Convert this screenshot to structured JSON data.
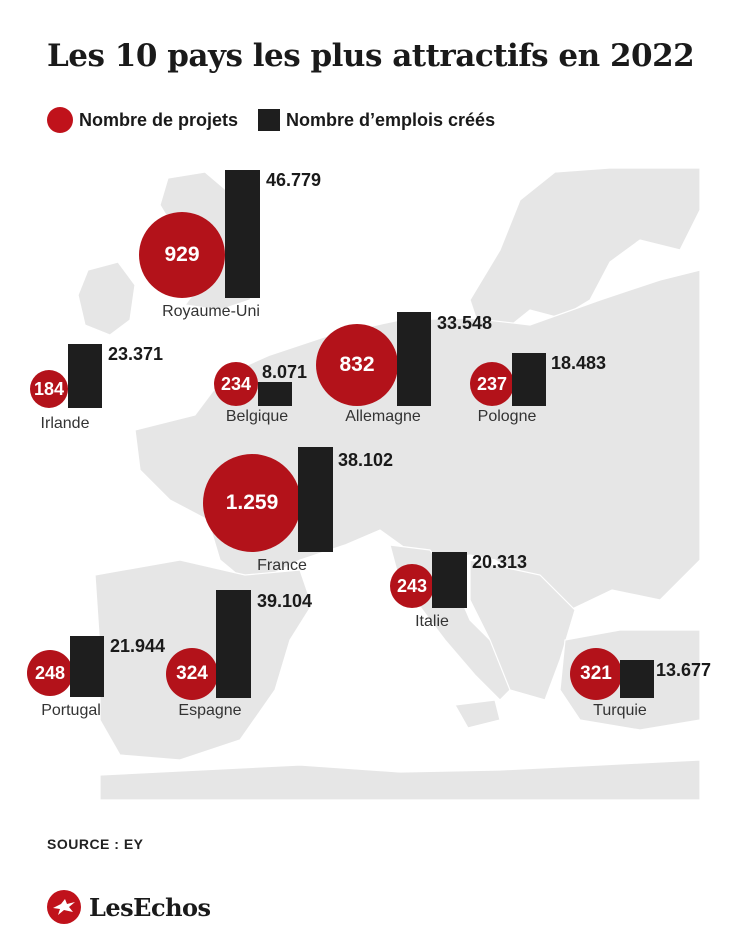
{
  "title": "Les 10 pays les plus attractifs en 2022",
  "legend": {
    "projects_label": "Nombre de projets",
    "jobs_label": "Nombre d’emplois créés",
    "projects_color": "#b3121a",
    "jobs_color": "#1e1e1e"
  },
  "chart_data": {
    "type": "map-bubble-bar",
    "series": [
      {
        "name": "Nombre de projets",
        "unit": "projets"
      },
      {
        "name": "Nombre d’emplois créés",
        "unit": "emplois"
      }
    ],
    "countries": [
      {
        "name": "Royaume-Uni",
        "projects": 929,
        "projects_label": "929",
        "jobs": 46779,
        "jobs_label": "46.779"
      },
      {
        "name": "Irlande",
        "projects": 184,
        "projects_label": "184",
        "jobs": 23371,
        "jobs_label": "23.371"
      },
      {
        "name": "Belgique",
        "projects": 234,
        "projects_label": "234",
        "jobs": 8071,
        "jobs_label": "8.071"
      },
      {
        "name": "Allemagne",
        "projects": 832,
        "projects_label": "832",
        "jobs": 33548,
        "jobs_label": "33.548"
      },
      {
        "name": "Pologne",
        "projects": 237,
        "projects_label": "237",
        "jobs": 18483,
        "jobs_label": "18.483"
      },
      {
        "name": "France",
        "projects": 1259,
        "projects_label": "1.259",
        "jobs": 38102,
        "jobs_label": "38.102"
      },
      {
        "name": "Italie",
        "projects": 243,
        "projects_label": "243",
        "jobs": 20313,
        "jobs_label": "20.313"
      },
      {
        "name": "Portugal",
        "projects": 248,
        "projects_label": "248",
        "jobs": 21944,
        "jobs_label": "21.944"
      },
      {
        "name": "Espagne",
        "projects": 324,
        "projects_label": "324",
        "jobs": 39104,
        "jobs_label": "39.104"
      },
      {
        "name": "Turquie",
        "projects": 321,
        "projects_label": "321",
        "jobs": 13677,
        "jobs_label": "13.677"
      }
    ]
  },
  "source": "SOURCE : EY",
  "logo": {
    "text": "LesEchos",
    "icon": "les-echos-bird-icon"
  }
}
